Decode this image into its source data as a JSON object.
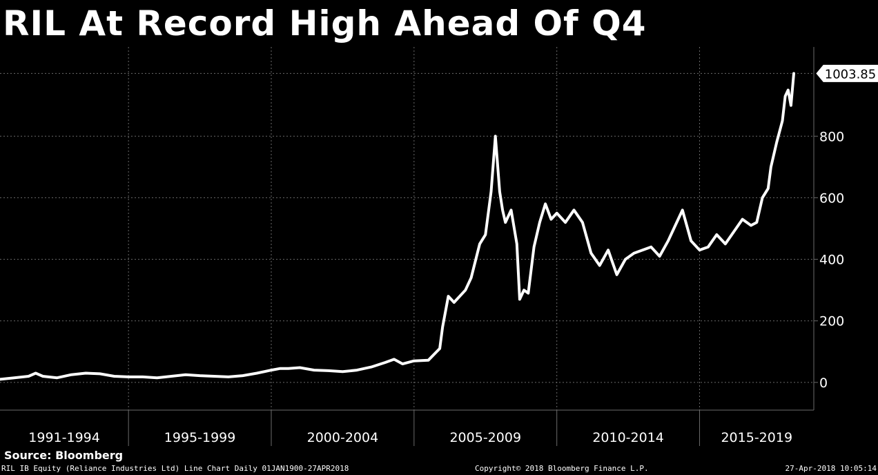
{
  "title": "RIL At Record High Ahead Of Q4",
  "source": "Source: Bloomberg",
  "footer": {
    "description": "RIL IB Equity (Reliance Industries Ltd) Line Chart  Daily 01JAN1900-27APR2018",
    "copyright": "Copyright© 2018 Bloomberg Finance L.P.",
    "timestamp": "27-Apr-2018 10:05:14"
  },
  "colors": {
    "background": "#000000",
    "line": "#ffffff",
    "grid": "#6b6b6b",
    "text": "#ffffff"
  },
  "chart_data": {
    "type": "line",
    "title": "RIL At Record High Ahead Of Q4",
    "xlabel": "",
    "ylabel": "",
    "x_range": [
      1990.5,
      2019.0
    ],
    "ylim": [
      -90,
      1090
    ],
    "y_ticks": [
      0,
      200,
      400,
      600,
      800
    ],
    "y_tick_labels": [
      "0",
      "200",
      "400",
      "600",
      "800"
    ],
    "y_axis_side": "right",
    "grid": true,
    "x_period_labels": [
      "1991-1994",
      "1995-1999",
      "2000-2004",
      "2005-2009",
      "2010-2014",
      "2015-2019"
    ],
    "x_period_start_years": [
      1990.5,
      1995,
      2000,
      2005,
      2010,
      2015
    ],
    "x_period_end_year": 2019.0,
    "last_value_label": "1003.85",
    "series": [
      {
        "x": [
          1990.5,
          1991.0,
          1991.5,
          1991.75,
          1992.0,
          1992.5,
          1993.0,
          1993.5,
          1994.0,
          1994.5,
          1995.0,
          1995.5,
          1996.0,
          1996.5,
          1997.0,
          1997.5,
          1998.0,
          1998.5,
          1999.0,
          1999.5,
          2000.0,
          2000.3,
          2000.6,
          2001.0,
          2001.5,
          2002.0,
          2002.5,
          2003.0,
          2003.5,
          2004.0,
          2004.3,
          2004.6,
          2005.0,
          2005.5,
          2005.9,
          2006.0,
          2006.2,
          2006.4,
          2006.8,
          2007.0,
          2007.3,
          2007.5,
          2007.7,
          2007.85,
          2008.0,
          2008.1,
          2008.2,
          2008.4,
          2008.6,
          2008.7,
          2008.85,
          2009.0,
          2009.2,
          2009.4,
          2009.6,
          2009.8,
          2010.0,
          2010.3,
          2010.6,
          2010.9,
          2011.2,
          2011.5,
          2011.8,
          2012.1,
          2012.4,
          2012.7,
          2013.0,
          2013.3,
          2013.6,
          2013.9,
          2014.2,
          2014.4,
          2014.7,
          2015.0,
          2015.3,
          2015.6,
          2015.9,
          2016.2,
          2016.5,
          2016.8,
          2017.0,
          2017.2,
          2017.4,
          2017.5,
          2017.7,
          2017.9,
          2018.0,
          2018.1,
          2018.2,
          2018.3
        ],
        "y": [
          10,
          15,
          20,
          30,
          20,
          15,
          25,
          30,
          28,
          20,
          18,
          18,
          15,
          20,
          25,
          22,
          20,
          18,
          22,
          30,
          40,
          45,
          45,
          48,
          40,
          38,
          35,
          40,
          50,
          65,
          75,
          60,
          70,
          72,
          110,
          180,
          280,
          260,
          300,
          340,
          450,
          480,
          620,
          800,
          620,
          560,
          520,
          560,
          450,
          270,
          300,
          290,
          440,
          520,
          580,
          530,
          550,
          520,
          560,
          520,
          420,
          380,
          430,
          350,
          400,
          420,
          430,
          440,
          410,
          460,
          520,
          560,
          460,
          430,
          440,
          480,
          450,
          490,
          530,
          510,
          520,
          600,
          630,
          700,
          780,
          850,
          930,
          950,
          900,
          1003.85
        ]
      }
    ]
  }
}
